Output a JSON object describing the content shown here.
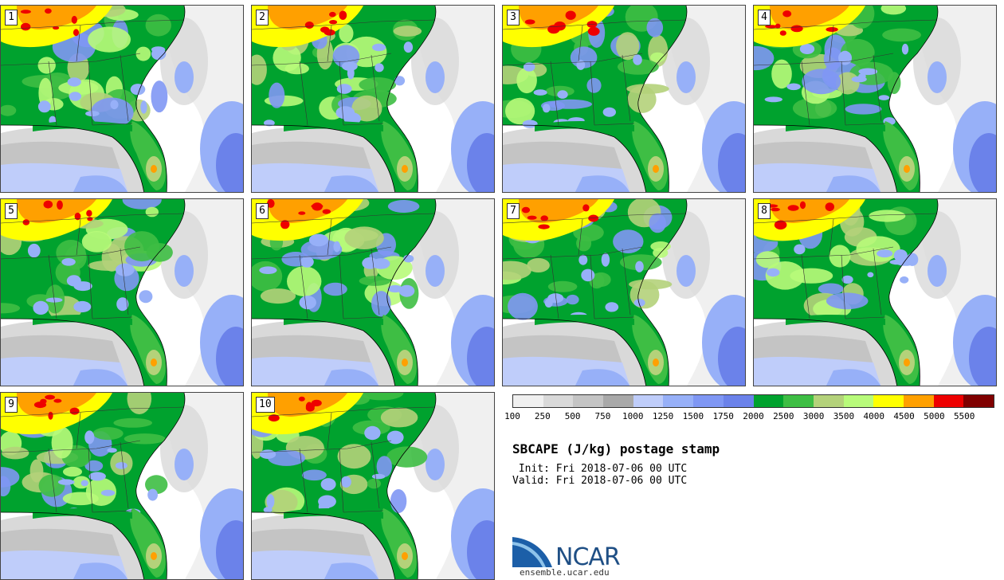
{
  "panels": [
    {
      "label": "1",
      "variant": 0
    },
    {
      "label": "2",
      "variant": 1
    },
    {
      "label": "3",
      "variant": 2
    },
    {
      "label": "4",
      "variant": 3
    },
    {
      "label": "5",
      "variant": 4
    },
    {
      "label": "6",
      "variant": 5
    },
    {
      "label": "7",
      "variant": 6
    },
    {
      "label": "8",
      "variant": 7
    },
    {
      "label": "9",
      "variant": 8
    },
    {
      "label": "10",
      "variant": 9
    }
  ],
  "colorbar": {
    "colors": [
      "#f0f0f0",
      "#d9d9d9",
      "#c4c4c4",
      "#a9a9a9",
      "#bfcdfa",
      "#97b0f8",
      "#7f97f4",
      "#6b82ea",
      "#00a22e",
      "#3ebe44",
      "#b4d27a",
      "#b8fb7a",
      "#ffff00",
      "#ffa000",
      "#ee0000",
      "#800000"
    ],
    "tick_labels": [
      "100",
      "250",
      "500",
      "750",
      "1000",
      "1250",
      "1500",
      "1750",
      "2000",
      "2500",
      "3000",
      "3500",
      "4000",
      "4500",
      "5000",
      "5500"
    ]
  },
  "title": "SBCAPE (J/kg) postage stamp",
  "init": " Init: Fri 2018-07-06 00 UTC",
  "valid": "Valid: Fri 2018-07-06 00 UTC",
  "logo": {
    "text": "NCAR",
    "url": "ensemble.ucar.edu"
  }
}
